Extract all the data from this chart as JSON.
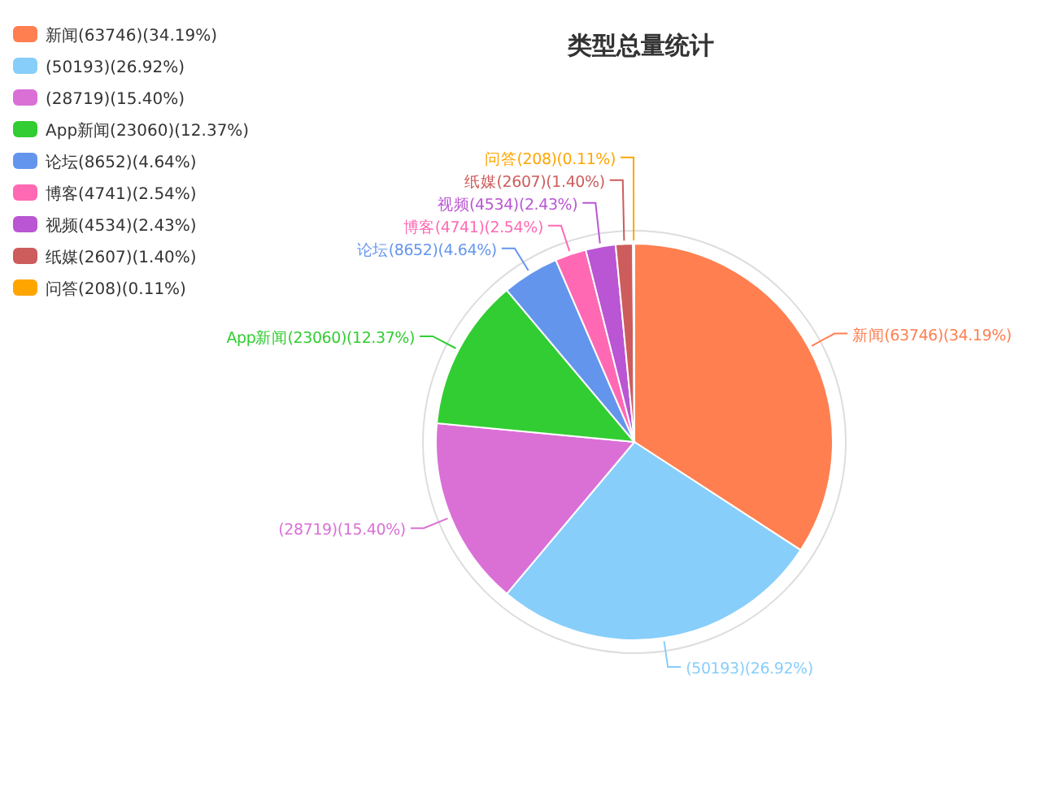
{
  "chart_data": {
    "type": "pie",
    "title": "类型总量统计",
    "categories": [
      "新闻",
      null,
      null,
      "App新闻",
      "论坛",
      "博客",
      "视频",
      "纸媒",
      "问答"
    ],
    "values": [
      63746,
      50193,
      28719,
      23060,
      8652,
      4741,
      4534,
      2607,
      208
    ],
    "value_labels": [
      "(63746)(34.19%)",
      "(50193)(26.92%)",
      "(28719)(15.40%)",
      "(23060)(12.37%)",
      "(8652)(4.64%)",
      "(4741)(2.54%)",
      "(4534)(2.43%)",
      "(2607)(1.40%)",
      "(208)(0.11%)"
    ],
    "colors": [
      "#ff7f50",
      "#87cefa",
      "#da70d6",
      "#32cd32",
      "#6495ed",
      "#ff69b4",
      "#ba55d3",
      "#cd5c5c",
      "#ffa500"
    ],
    "legend": "top left"
  }
}
